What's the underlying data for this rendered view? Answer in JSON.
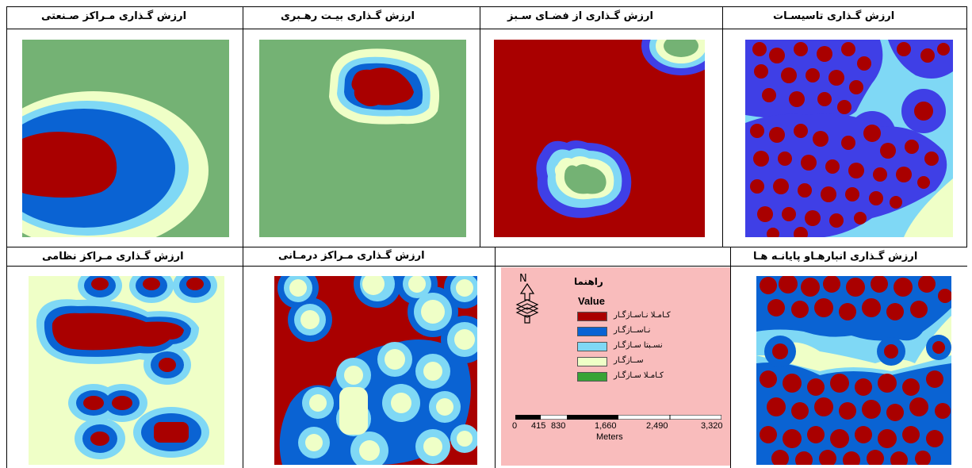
{
  "colors": {
    "completely_incompatible": "#a90000",
    "incompatible": "#0a63d3",
    "relatively_compatible": "#7fd8f5",
    "compatible": "#efffc7",
    "completely_compatible": "#38a336",
    "green_bg": "#74b274",
    "overlay_blue": "#3f3fe6",
    "legend_bg": "#f9bcbc"
  },
  "panels": [
    {
      "id": "industrial",
      "title": "ارزش گـذاری مـراکز صـنعتی"
    },
    {
      "id": "governance",
      "title": "ارزش گـذاری بیـت رهـبری"
    },
    {
      "id": "green_space",
      "title": "ارزش گـذاری از فضـای سـبز"
    },
    {
      "id": "facilities",
      "title": "ارزش گـذاری تاسیسـات"
    },
    {
      "id": "military",
      "title": "ارزش گـذاری مـراکز نظامی"
    },
    {
      "id": "medical",
      "title": "ارزش گـذاری مـراکز درمـانی"
    },
    {
      "id": "depots",
      "title": "ارزش گـذاری انبارهـاو پایانـه هـا"
    }
  ],
  "legend": {
    "title": "راهنما",
    "value_label": "Value",
    "north_label": "N",
    "classes": [
      {
        "label": "کـامـلا نـاسـازگـار",
        "color_key": "completely_incompatible"
      },
      {
        "label": "نـاســازگـار",
        "color_key": "incompatible"
      },
      {
        "label": "نسـبتا سـازگـار",
        "color_key": "relatively_compatible"
      },
      {
        "label": "ســازگـار",
        "color_key": "compatible"
      },
      {
        "label": "کـامـلا سـازگـار",
        "color_key": "completely_compatible"
      }
    ],
    "scale": {
      "ticks": [
        "0",
        "415",
        "830",
        "1,660",
        "2,490",
        "3,320"
      ],
      "unit": "Meters"
    }
  }
}
